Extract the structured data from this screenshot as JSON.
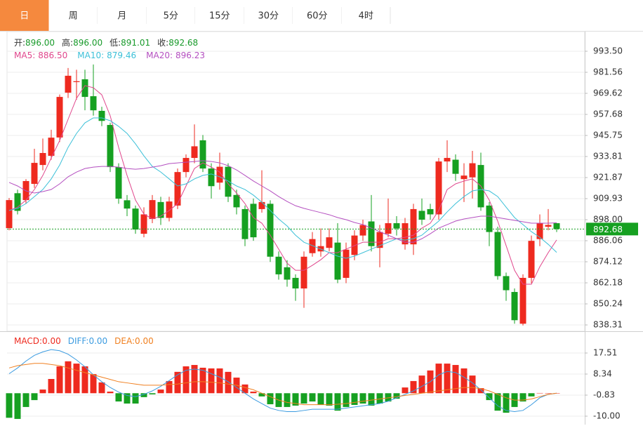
{
  "tabs": {
    "items": [
      "日",
      "周",
      "月",
      "5分",
      "15分",
      "30分",
      "60分",
      "4时"
    ],
    "active_index": 0
  },
  "chart_data": {
    "type": "candlestick",
    "ohlc_header": [
      {
        "label": "开:",
        "value": "896.00"
      },
      {
        "label": "高:",
        "value": "896.00"
      },
      {
        "label": "低:",
        "value": "891.01"
      },
      {
        "label": "收:",
        "value": "892.68"
      }
    ],
    "up_color": "#ee2a1f",
    "down_color": "#16a021",
    "open": [
      893.2,
      913,
      909.1,
      918.3,
      929,
      934.2,
      944.6,
      970,
      976,
      977.6,
      968,
      959.7,
      951.7,
      927.8,
      909,
      904.3,
      890,
      898.4,
      908,
      899,
      906,
      925,
      933,
      943,
      927,
      919,
      928,
      912,
      904,
      907,
      904,
      907,
      877,
      871,
      865,
      859,
      879,
      880,
      882,
      885,
      865,
      878,
      889,
      897,
      882,
      890,
      896,
      884,
      884,
      903,
      904,
      901,
      931,
      932,
      921,
      922,
      929,
      906,
      891,
      866,
      857,
      839,
      865,
      887,
      894,
      896
    ],
    "high": [
      910.3,
      915,
      921,
      938.2,
      944,
      949,
      969,
      984,
      983,
      983,
      986,
      962,
      953,
      930,
      912,
      906,
      905,
      912,
      911,
      911,
      927,
      935,
      952,
      946,
      930,
      936,
      930,
      915,
      906,
      910,
      926,
      909,
      880,
      875,
      867,
      880,
      891,
      893,
      893,
      896,
      885,
      892,
      898,
      912,
      895,
      910,
      900,
      899,
      907,
      910,
      907,
      933,
      943,
      935,
      930,
      937,
      936,
      908,
      894,
      868,
      859,
      867,
      889,
      901,
      904,
      896
    ],
    "low": [
      892,
      901,
      907,
      916,
      926,
      932,
      942,
      967,
      966,
      960,
      957,
      951,
      925,
      907,
      900,
      890,
      888,
      896,
      895,
      897,
      904,
      922,
      930,
      925,
      910,
      915,
      908,
      901,
      883,
      886,
      902,
      874,
      864,
      860,
      852,
      848,
      877,
      877,
      880,
      862,
      862,
      875,
      886,
      880,
      871,
      888,
      889,
      881,
      878,
      895,
      898,
      898,
      925,
      920,
      908,
      910,
      903,
      883,
      864,
      852,
      839,
      838,
      862,
      883,
      892,
      891.01
    ],
    "close": [
      909.1,
      903,
      919.9,
      930.2,
      935.8,
      944.5,
      967.6,
      979.6,
      976.5,
      967.6,
      960,
      954,
      927.8,
      909.9,
      904.3,
      892.4,
      901,
      909.1,
      899,
      908.3,
      925,
      933,
      939.6,
      927,
      917,
      928,
      911,
      905,
      887,
      888,
      908,
      877,
      867,
      864,
      859,
      877,
      887,
      883,
      888,
      864,
      881,
      889,
      895,
      883,
      891,
      896,
      893,
      896,
      904,
      898,
      901,
      931,
      933,
      924,
      923,
      930,
      905,
      891,
      866,
      858,
      841,
      865,
      886,
      896,
      895,
      892.68
    ],
    "series": [
      {
        "name": "MA5:",
        "last_label": "886.50",
        "color": "#e0468c",
        "values": [
          903.2,
          905.1,
          909.1,
          915.1,
          923.1,
          933.0,
          942.9,
          954.9,
          966.8,
          974.0,
          972.8,
          968.8,
          956.9,
          939.0,
          923.1,
          909.1,
          901.2,
          898.4,
          900.0,
          903.2,
          907.1,
          917.1,
          927.0,
          930.2,
          927.8,
          925.0,
          918.3,
          913.1,
          907.1,
          899.2,
          896.0,
          889.2,
          881.3,
          873.3,
          869.3,
          869.3,
          872.1,
          875.3,
          879.3,
          879.3,
          881.3,
          883.3,
          885.2,
          885.2,
          885.2,
          887.2,
          887.2,
          888.0,
          889.2,
          893.2,
          896.0,
          903.2,
          915.1,
          918.3,
          919.9,
          921.1,
          917.1,
          909.1,
          897.2,
          883.3,
          869.3,
          861.4,
          861.4,
          871.3,
          879.3,
          886.5
        ]
      },
      {
        "name": "MA10:",
        "last_label": "879.46",
        "color": "#3cc0d8",
        "values": [
          903.2,
          904.4,
          907.1,
          911.1,
          915.1,
          921.1,
          929.0,
          939.0,
          946.9,
          952.9,
          955.7,
          955.7,
          954.1,
          950.9,
          946.9,
          941.0,
          934.2,
          928.2,
          925.0,
          921.1,
          917.1,
          918.3,
          921.1,
          923.1,
          923.9,
          922.3,
          919.9,
          917.1,
          915.1,
          911.9,
          907.9,
          903.2,
          898.4,
          894.4,
          889.2,
          885.2,
          883.3,
          881.3,
          879.3,
          877.3,
          876.1,
          877.3,
          879.3,
          881.3,
          883.3,
          885.2,
          887.2,
          886.4,
          887.2,
          889.2,
          893.2,
          897.2,
          902.4,
          907.1,
          911.1,
          914.3,
          915.1,
          914.3,
          911.1,
          905.1,
          899.2,
          895.2,
          891.2,
          888.0,
          884.0,
          879.46
        ]
      },
      {
        "name": "MA20:",
        "last_label": "896.23",
        "color": "#b44fc0",
        "values": [
          919.1,
          917.1,
          914.3,
          913.1,
          913.9,
          915.1,
          918.3,
          922.3,
          925.0,
          927.0,
          927.8,
          928.2,
          928.2,
          927.8,
          927.0,
          926.6,
          927.0,
          927.8,
          928.6,
          929.8,
          930.2,
          930.6,
          931.0,
          931.4,
          931.0,
          930.2,
          928.6,
          926.2,
          923.1,
          919.9,
          917.1,
          914.3,
          911.1,
          908.3,
          905.9,
          904.4,
          903.2,
          902.0,
          900.8,
          899.2,
          898.0,
          896.4,
          895.2,
          893.2,
          891.2,
          889.2,
          887.2,
          885.2,
          885.2,
          887.2,
          890.0,
          893.2,
          895.2,
          897.2,
          898.4,
          899.2,
          900.0,
          900.0,
          899.2,
          898.4,
          897.6,
          896.8,
          896.0,
          896.0,
          896.0,
          896.23
        ]
      }
    ],
    "last_price": {
      "value": 892.68,
      "label": "892.68",
      "color": "#16a021"
    },
    "ylim": [
      834.73,
      1004.64
    ],
    "yticks": [
      {
        "value": 993.5,
        "label": "993.50"
      },
      {
        "value": 981.56,
        "label": "981.56"
      },
      {
        "value": 969.62,
        "label": "969.62"
      },
      {
        "value": 957.68,
        "label": "957.68"
      },
      {
        "value": 945.75,
        "label": "945.75"
      },
      {
        "value": 933.81,
        "label": "933.81"
      },
      {
        "value": 921.87,
        "label": "921.87"
      },
      {
        "value": 909.93,
        "label": "909.93"
      },
      {
        "value": 898,
        "label": "898.00"
      },
      {
        "value": 886.06,
        "label": "886.06"
      },
      {
        "value": 874.12,
        "label": "874.12"
      },
      {
        "value": 862.18,
        "label": "862.18"
      },
      {
        "value": 850.24,
        "label": "850.24"
      },
      {
        "value": 838.31,
        "label": "838.31"
      }
    ],
    "grid": true,
    "macd": {
      "legend": [
        {
          "label": "MACD:",
          "value": "0.00",
          "color": "#ee2a1f"
        },
        {
          "label": "DIFF:",
          "value": "0.00",
          "color": "#3b9be0"
        },
        {
          "label": "DEA:",
          "value": "0.00",
          "color": "#f08020"
        }
      ],
      "ylim": [
        -13.67,
        26.07
      ],
      "yticks": [
        17.51,
        8.34,
        -0.83,
        {
          "value": -10,
          "label": "-10.00"
        }
      ],
      "histogram": [
        -10.7,
        -11.2,
        -6.0,
        -3.0,
        1.6,
        6.2,
        11.7,
        13.9,
        12.9,
        11.7,
        8.3,
        4.7,
        0.7,
        -3.6,
        -4.5,
        -4.5,
        -1.7,
        -0.5,
        1.6,
        5.3,
        9.3,
        11.7,
        12.3,
        11.1,
        10.8,
        10.8,
        9.3,
        6.8,
        3.8,
        0.7,
        -1.4,
        -4.8,
        -6.0,
        -6.0,
        -5.4,
        -4.5,
        -3.6,
        -5.1,
        -5.4,
        -7.6,
        -6.0,
        -5.1,
        -4.5,
        -5.4,
        -4.5,
        -3.6,
        -2.4,
        2.5,
        5.3,
        7.7,
        9.9,
        12.9,
        12.9,
        12.3,
        10.8,
        7.7,
        2.2,
        -3.0,
        -7.6,
        -8.5,
        -6.0,
        -3.6,
        -1.4,
        0.1,
        0,
        0
      ],
      "diff": [
        8.5,
        11,
        14,
        16.5,
        18,
        19,
        18.5,
        17,
        14.5,
        11.5,
        8,
        5,
        2.5,
        0.5,
        -1,
        -1.5,
        -0.5,
        1,
        3,
        5.5,
        8,
        10,
        10.5,
        10,
        8.5,
        7,
        5,
        2.5,
        0,
        -2.5,
        -4.5,
        -6.5,
        -7.5,
        -8,
        -8,
        -7.5,
        -7,
        -7,
        -7,
        -7,
        -6.5,
        -6,
        -5.5,
        -5,
        -4.5,
        -3.5,
        -2,
        -0.5,
        1,
        3,
        5,
        8,
        9.5,
        9,
        7,
        4.5,
        1.5,
        -2,
        -5.5,
        -7.5,
        -8,
        -7.5,
        -5,
        -2,
        -0.5,
        0
      ],
      "dea": [
        11,
        12,
        12.5,
        13,
        13,
        12.5,
        12,
        11,
        10,
        9,
        8,
        7,
        6,
        5,
        4.5,
        4,
        3.5,
        3.5,
        3.5,
        3.8,
        4,
        4.5,
        5,
        5,
        4.8,
        4.5,
        4,
        3.5,
        2.5,
        1.5,
        0,
        -1.5,
        -3,
        -4,
        -4.5,
        -5,
        -5,
        -5,
        -5,
        -4.8,
        -4.5,
        -4,
        -3.5,
        -3,
        -2.5,
        -2,
        -1.5,
        -1,
        -0.5,
        0,
        0.5,
        1,
        1.5,
        2,
        2.5,
        2.5,
        2,
        1,
        -0.5,
        -2,
        -3,
        -3,
        -2.5,
        -1.5,
        -0.5,
        0
      ]
    }
  }
}
